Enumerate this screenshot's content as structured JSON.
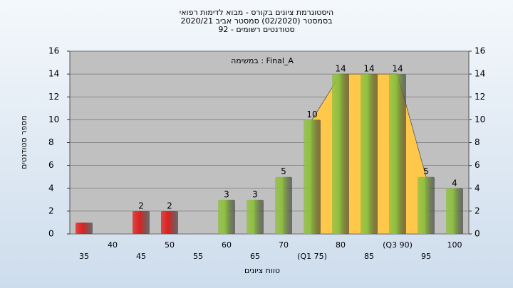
{
  "chart_data": {
    "type": "bar",
    "title": [
      "היסטוגרמת ציונים בקורס - מבוא לדימות רפואי",
      "בסמסטר  (02/2020)  סמסטר אביב 2020/21",
      "סטודנטים רשומים - 92"
    ],
    "annotation": "במשימה : Final_A",
    "x_label": "טווח ציונים",
    "y_label": "מספר סטודנטים",
    "categories": [
      "35",
      "40",
      "45",
      "50",
      "55",
      "60",
      "65",
      "70",
      "(Q1 75)",
      "80",
      "85",
      "(Q3 90)",
      "95",
      "100"
    ],
    "values": [
      1,
      0,
      2,
      2,
      0,
      3,
      3,
      5,
      10,
      14,
      14,
      14,
      5,
      4
    ],
    "value_labels": [
      null,
      null,
      "2",
      "2",
      null,
      "3",
      "3",
      "5",
      "10",
      "14",
      "14",
      "14",
      "5",
      "4"
    ],
    "colors": [
      "#e02020",
      "#e02020",
      "#e02020",
      "#e02020",
      "#8fc040",
      "#8fc040",
      "#8fc040",
      "#8fc040",
      "#8fc040",
      "#8fc040",
      "#8fc040",
      "#8fc040",
      "#8fc040",
      "#8fc040"
    ],
    "band_color": "#ffc84a",
    "ylim": [
      0,
      16
    ],
    "yticks": [
      0,
      2,
      4,
      6,
      8,
      10,
      12,
      14,
      16
    ],
    "y2lim": [
      0,
      16
    ],
    "y2ticks": [
      0,
      2,
      4,
      6,
      8,
      10,
      12,
      14,
      16
    ],
    "grid": true
  }
}
